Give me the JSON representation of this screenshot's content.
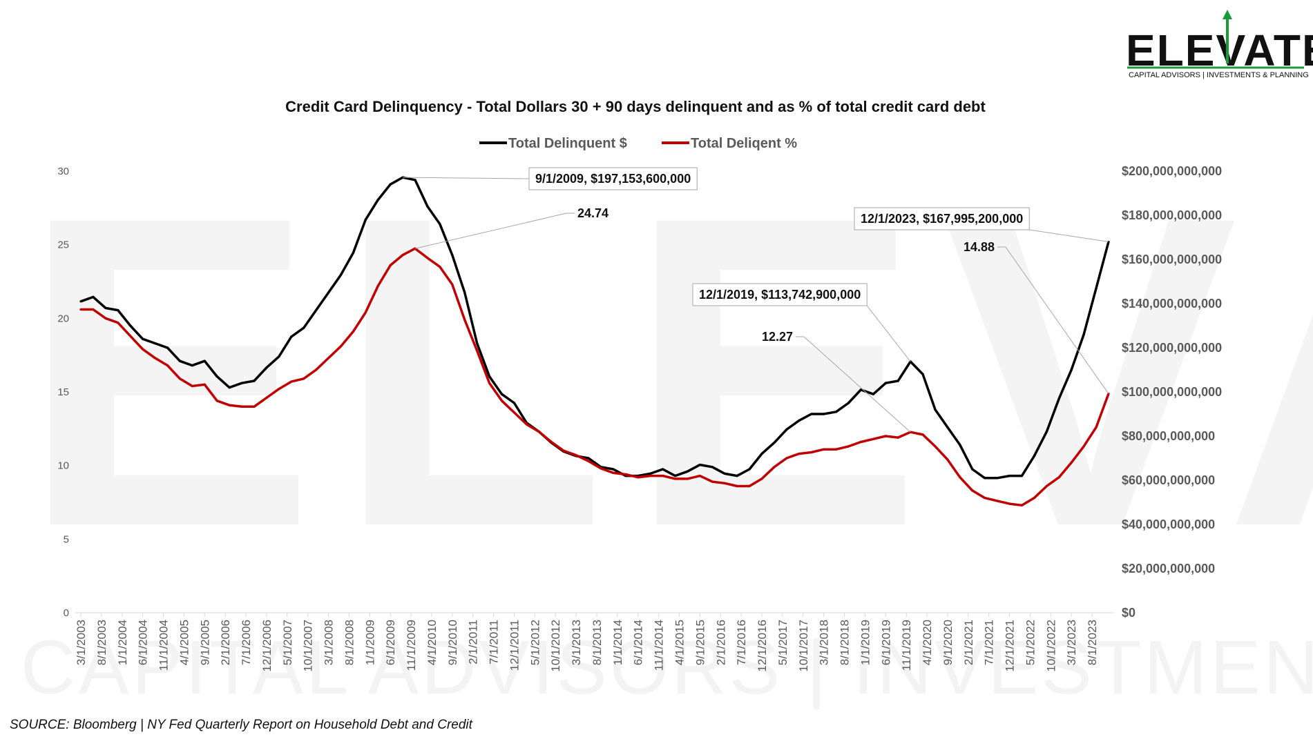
{
  "chart_data": {
    "type": "line",
    "title": "Credit Card Delinquency - Total Dollars 30 + 90 days delinquent and as % of total credit card debt",
    "source": "SOURCE: Bloomberg | NY Fed Quarterly Report on Household Debt and Credit",
    "logo": {
      "word": "ELEVATE",
      "subtitle": "CAPITAL ADVISORS | INVESTMENTS & PLANNING",
      "accent_color": "#1a9a3a"
    },
    "watermark": {
      "word": "ELEVATE",
      "subtitle": "CAPITAL ADVISORS | INVESTMENTS & PLANNING"
    },
    "left_axis": {
      "ylim": [
        0,
        30
      ],
      "ticks": [
        "0",
        "5",
        "10",
        "15",
        "20",
        "25",
        "30"
      ]
    },
    "right_axis": {
      "ylim": [
        0,
        200000000000
      ],
      "ticks": [
        "$0",
        "$20,000,000,000",
        "$40,000,000,000",
        "$60,000,000,000",
        "$80,000,000,000",
        "$100,000,000,000",
        "$120,000,000,000",
        "$140,000,000,000",
        "$160,000,000,000",
        "$180,000,000,000",
        "$200,000,000,000"
      ]
    },
    "x": [
      "3/1/2003",
      "6/1/2003",
      "9/1/2003",
      "12/1/2003",
      "3/1/2004",
      "6/1/2004",
      "9/1/2004",
      "12/1/2004",
      "3/1/2005",
      "6/1/2005",
      "9/1/2005",
      "12/1/2005",
      "3/1/2006",
      "6/1/2006",
      "9/1/2006",
      "12/1/2006",
      "3/1/2007",
      "6/1/2007",
      "9/1/2007",
      "12/1/2007",
      "3/1/2008",
      "6/1/2008",
      "9/1/2008",
      "12/1/2008",
      "3/1/2009",
      "6/1/2009",
      "9/1/2009",
      "12/1/2009",
      "3/1/2010",
      "6/1/2010",
      "9/1/2010",
      "12/1/2010",
      "3/1/2011",
      "6/1/2011",
      "9/1/2011",
      "12/1/2011",
      "3/1/2012",
      "6/1/2012",
      "9/1/2012",
      "12/1/2012",
      "3/1/2013",
      "6/1/2013",
      "9/1/2013",
      "12/1/2013",
      "3/1/2014",
      "6/1/2014",
      "9/1/2014",
      "12/1/2014",
      "3/1/2015",
      "6/1/2015",
      "9/1/2015",
      "12/1/2015",
      "3/1/2016",
      "6/1/2016",
      "9/1/2016",
      "12/1/2016",
      "3/1/2017",
      "6/1/2017",
      "9/1/2017",
      "12/1/2017",
      "3/1/2018",
      "6/1/2018",
      "9/1/2018",
      "12/1/2018",
      "3/1/2019",
      "6/1/2019",
      "9/1/2019",
      "12/1/2019",
      "3/1/2020",
      "6/1/2020",
      "9/1/2020",
      "12/1/2020",
      "3/1/2021",
      "6/1/2021",
      "9/1/2021",
      "12/1/2021",
      "3/1/2022",
      "6/1/2022",
      "9/1/2022",
      "12/1/2022",
      "3/1/2023",
      "6/1/2023",
      "9/1/2023",
      "12/1/2023"
    ],
    "x_tick_labels": [
      "3/1/2003",
      "8/1/2003",
      "1/1/2004",
      "6/1/2004",
      "11/1/2004",
      "4/1/2005",
      "9/1/2005",
      "2/1/2006",
      "7/1/2006",
      "12/1/2006",
      "5/1/2007",
      "10/1/2007",
      "3/1/2008",
      "8/1/2008",
      "1/1/2009",
      "6/1/2009",
      "11/1/2009",
      "4/1/2010",
      "9/1/2010",
      "2/1/2011",
      "7/1/2011",
      "12/1/2011",
      "5/1/2012",
      "10/1/2012",
      "3/1/2013",
      "8/1/2013",
      "1/1/2014",
      "6/1/2014",
      "11/1/2014",
      "4/1/2015",
      "9/1/2015",
      "2/1/2016",
      "7/1/2016",
      "12/1/2016",
      "5/1/2017",
      "10/1/2017",
      "3/1/2018",
      "8/1/2018",
      "1/1/2019",
      "6/1/2019",
      "11/1/2019",
      "4/1/2020",
      "9/1/2020",
      "2/1/2021",
      "7/1/2021",
      "12/1/2021",
      "5/1/2022",
      "10/1/2022",
      "3/1/2023",
      "8/1/2023"
    ],
    "series": [
      {
        "name": "Total Delinquent $",
        "axis": "right",
        "color": "#000000",
        "values": [
          141000000000,
          143000000000,
          138000000000,
          137000000000,
          130000000000,
          124000000000,
          122000000000,
          120000000000,
          114000000000,
          112000000000,
          114000000000,
          107000000000,
          102000000000,
          104000000000,
          105000000000,
          111000000000,
          116000000000,
          125000000000,
          129000000000,
          137000000000,
          145000000000,
          153000000000,
          163000000000,
          178000000000,
          187000000000,
          194000000000,
          197153600000,
          196000000000,
          184000000000,
          176000000000,
          162000000000,
          145000000000,
          122000000000,
          107000000000,
          99000000000,
          95000000000,
          86000000000,
          82000000000,
          77000000000,
          73000000000,
          71000000000,
          70000000000,
          66000000000,
          65000000000,
          62000000000,
          62000000000,
          63000000000,
          65000000000,
          62000000000,
          64000000000,
          67000000000,
          66000000000,
          63000000000,
          62000000000,
          65000000000,
          72000000000,
          77000000000,
          83000000000,
          87000000000,
          90000000000,
          90000000000,
          91000000000,
          95000000000,
          101000000000,
          99000000000,
          104000000000,
          105000000000,
          113742900000,
          108000000000,
          92000000000,
          84000000000,
          76000000000,
          65000000000,
          61000000000,
          61000000000,
          62000000000,
          62000000000,
          71000000000,
          82000000000,
          97000000000,
          110000000000,
          126000000000,
          147000000000,
          167995200000
        ]
      },
      {
        "name": "Total Deliqent %",
        "axis": "left",
        "color": "#c00000",
        "values": [
          20.6,
          20.6,
          20.0,
          19.7,
          18.8,
          17.9,
          17.3,
          16.8,
          15.9,
          15.4,
          15.5,
          14.4,
          14.1,
          14.0,
          14.0,
          14.6,
          15.2,
          15.7,
          15.9,
          16.5,
          17.3,
          18.1,
          19.1,
          20.4,
          22.2,
          23.6,
          24.3,
          24.74,
          24.1,
          23.5,
          22.3,
          19.9,
          17.8,
          15.6,
          14.4,
          13.6,
          12.8,
          12.3,
          11.6,
          11.0,
          10.7,
          10.3,
          9.8,
          9.5,
          9.4,
          9.2,
          9.3,
          9.3,
          9.1,
          9.1,
          9.3,
          8.9,
          8.8,
          8.6,
          8.6,
          9.1,
          9.9,
          10.5,
          10.8,
          10.9,
          11.1,
          11.1,
          11.3,
          11.6,
          11.8,
          12.0,
          11.9,
          12.27,
          12.1,
          11.3,
          10.4,
          9.2,
          8.3,
          7.8,
          7.6,
          7.4,
          7.3,
          7.8,
          8.6,
          9.2,
          10.2,
          11.3,
          12.6,
          14.88
        ]
      }
    ],
    "annotations": [
      {
        "label": "9/1/2009,  $197,153,600,000",
        "series": 0,
        "x": "9/1/2009",
        "boxed": true
      },
      {
        "label": "24.74",
        "series": 1,
        "x": "12/1/2009",
        "boxed": false
      },
      {
        "label": "12/1/2023,  $167,995,200,000",
        "series": 0,
        "x": "12/1/2023",
        "boxed": true
      },
      {
        "label": "14.88",
        "series": 1,
        "x": "12/1/2023",
        "boxed": false
      },
      {
        "label": "12/1/2019,  $113,742,900,000",
        "series": 0,
        "x": "12/1/2019",
        "boxed": true
      },
      {
        "label": "12.27",
        "series": 1,
        "x": "12/1/2019",
        "boxed": false
      }
    ],
    "legend_position": "top-center",
    "grid": false
  }
}
